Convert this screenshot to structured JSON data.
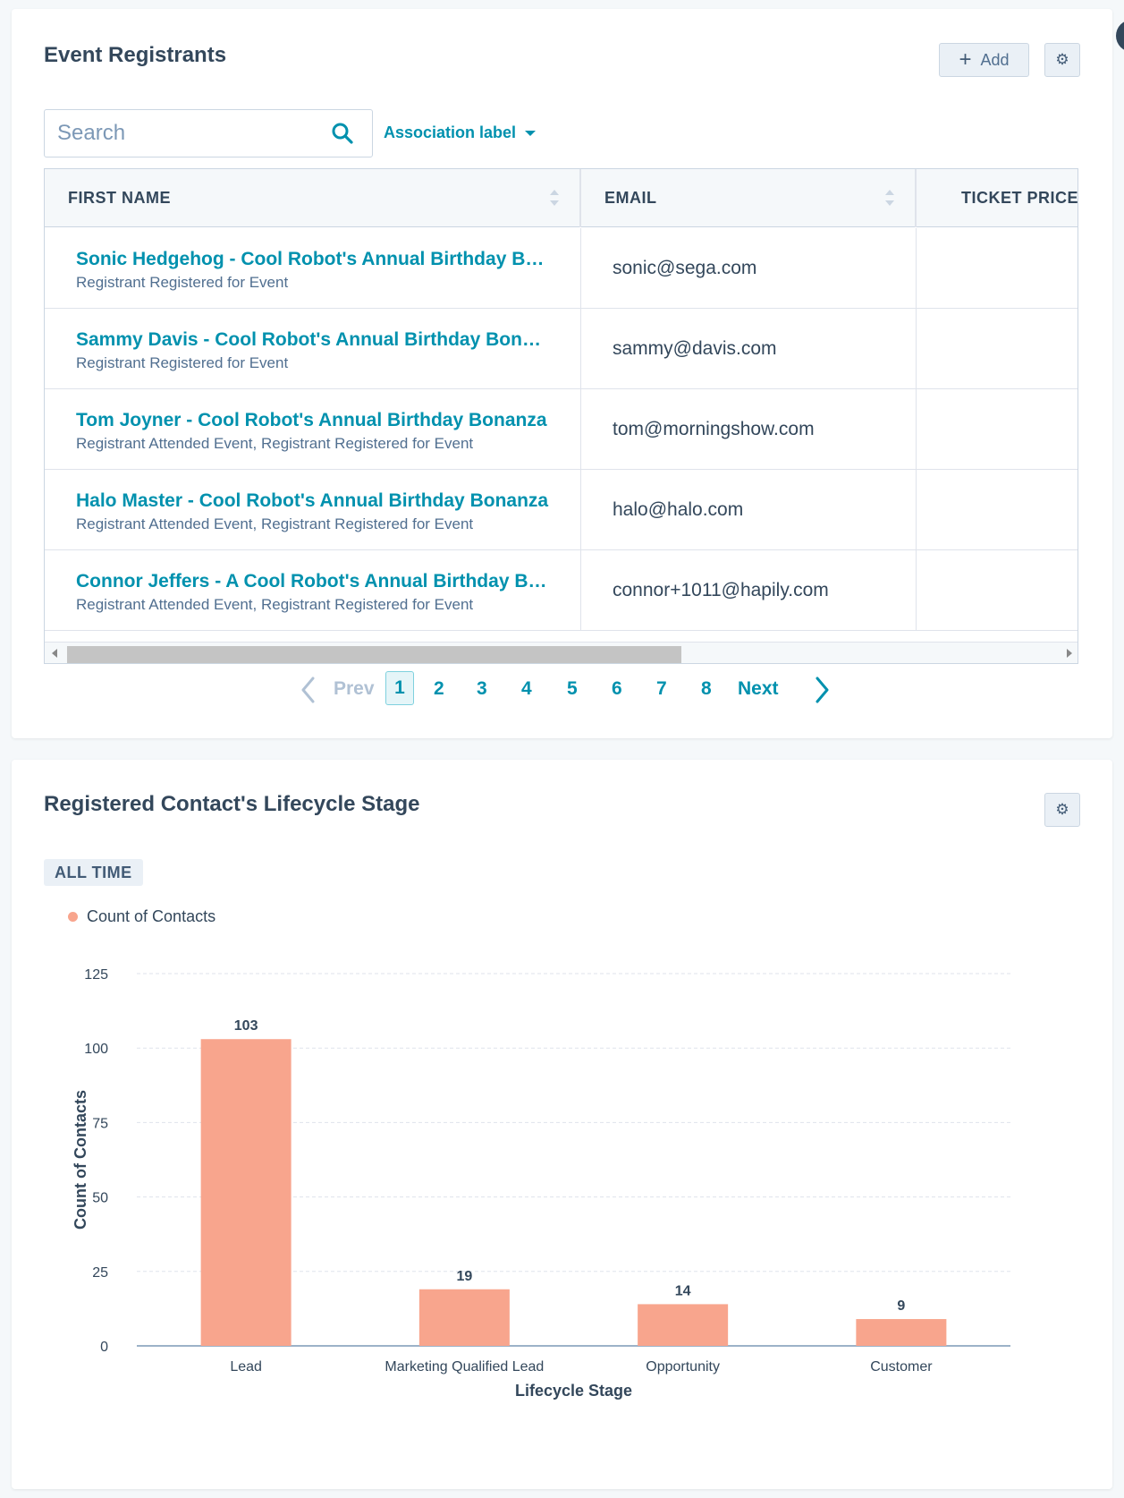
{
  "registrants": {
    "title": "Event Registrants",
    "add_label": "Add",
    "search": {
      "placeholder": "Search",
      "value": ""
    },
    "filter_label": "Association label",
    "columns": [
      "FIRST NAME",
      "EMAIL",
      "TICKET PRICE"
    ],
    "rows": [
      {
        "name": "Sonic Hedgehog - Cool Robot's Annual Birthday Bonanza",
        "sub": "Registrant Registered for Event",
        "email": "sonic@sega.com"
      },
      {
        "name": "Sammy Davis - Cool Robot's Annual Birthday Bonanza",
        "sub": "Registrant Registered for Event",
        "email": "sammy@davis.com"
      },
      {
        "name": "Tom Joyner - Cool Robot's Annual Birthday Bonanza",
        "sub": "Registrant Attended Event, Registrant Registered for Event",
        "email": "tom@morningshow.com"
      },
      {
        "name": "Halo Master - Cool Robot's Annual Birthday Bonanza",
        "sub": "Registrant Attended Event, Registrant Registered for Event",
        "email": "halo@halo.com"
      },
      {
        "name": "Connor Jeffers - A Cool Robot's Annual Birthday Bonanza",
        "sub": "Registrant Attended Event, Registrant Registered for Event",
        "email": "connor+1011@hapily.com"
      }
    ],
    "pagination": {
      "prev_label": "Prev",
      "next_label": "Next",
      "current": "1",
      "pages": [
        "2",
        "3",
        "4",
        "5",
        "6",
        "7",
        "8"
      ]
    }
  },
  "lifecycle": {
    "title": "Registered Contact's Lifecycle Stage",
    "time_badge": "ALL TIME",
    "legend_label": "Count of Contacts",
    "colors": {
      "bar": "#f8a58d",
      "accent": "#0091ae"
    },
    "icons": [
      "gear-icon"
    ]
  },
  "chart_data": {
    "type": "bar",
    "categories": [
      "Lead",
      "Marketing Qualified Lead",
      "Opportunity",
      "Customer"
    ],
    "values": [
      103,
      19,
      14,
      9
    ],
    "series": [
      {
        "name": "Count of Contacts",
        "values": [
          103,
          19,
          14,
          9
        ]
      }
    ],
    "xlabel": "Lifecycle Stage",
    "ylabel": "Count of Contacts",
    "ylim": [
      0,
      125
    ],
    "yticks": [
      0,
      25,
      50,
      75,
      100,
      125
    ],
    "grid": true,
    "legend": "top-left",
    "data_labels": true
  }
}
